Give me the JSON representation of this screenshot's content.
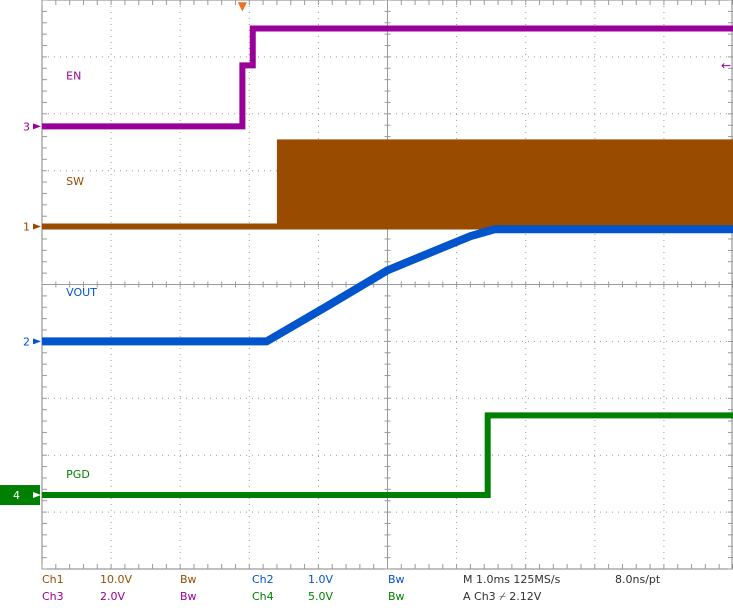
{
  "chart_data": {
    "type": "line",
    "title": "",
    "xlabel": "",
    "ylabel": "",
    "grid": true,
    "xlim": [
      0,
      10
    ],
    "ylim": [
      0,
      10
    ],
    "x_unit": "ms",
    "series": [
      {
        "name": "EN",
        "channel": "Ch3",
        "marker": "3",
        "color": "#990099",
        "thickness": "thin",
        "label_pos": [
          0.35,
          8.6
        ],
        "x": [
          0,
          2.9,
          2.9,
          3.05,
          3.05,
          10
        ],
        "y": [
          7.78,
          7.78,
          8.85,
          8.85,
          9.5,
          9.5
        ]
      },
      {
        "name": "SW",
        "channel": "Ch1",
        "marker": "1",
        "color": "#994c00",
        "thickness": "thin",
        "label_pos": [
          0.35,
          6.75
        ],
        "x": [
          0,
          3.4,
          3.4,
          10
        ],
        "y": [
          6.02,
          6.02,
          6.02,
          6.02
        ],
        "band": {
          "x_from": 3.4,
          "x_to": 10,
          "y_low": 6.02,
          "y_high": 7.55
        }
      },
      {
        "name": "VOUT",
        "channel": "Ch2",
        "marker": "2",
        "color": "#0055cc",
        "thickness": "thick",
        "label_pos": [
          0.35,
          4.8
        ],
        "x": [
          0,
          3.25,
          4.1,
          5.0,
          6.2,
          6.55,
          10
        ],
        "y": [
          4.0,
          4.0,
          4.6,
          5.25,
          5.85,
          5.97,
          5.97
        ]
      },
      {
        "name": "PGD",
        "channel": "Ch4",
        "marker": "4",
        "color": "#008000",
        "thickness": "thin",
        "label_pos": [
          0.35,
          1.6
        ],
        "x": [
          0,
          6.45,
          6.45,
          10
        ],
        "y": [
          1.3,
          1.3,
          2.7,
          2.7
        ]
      }
    ],
    "trigger_marker": "▼",
    "trigger_x": 2.9,
    "right_arrow": "←",
    "status": {
      "row1": {
        "ch1": {
          "name": "Ch1",
          "scale": "10.0V",
          "bw": "Bw"
        },
        "ch2": {
          "name": "Ch2",
          "scale": "1.0V",
          "bw": "Bw"
        },
        "timebase": "M 1.0ms 125MS/s",
        "resolution": "8.0ns/pt"
      },
      "row2": {
        "ch3": {
          "name": "Ch3",
          "scale": "2.0V",
          "bw": "Bw"
        },
        "ch4": {
          "name": "Ch4",
          "scale": "5.0V",
          "bw": "Bw"
        },
        "trigger": "A  Ch3  ⌿  2.12V"
      }
    }
  },
  "colors": {
    "grid": "#9a9a9a",
    "frame": "#808080",
    "trigger": "#f07020",
    "status_ch1": "#994c00",
    "status_ch2": "#0055cc",
    "status_ch3": "#990099",
    "status_ch4": "#008000",
    "status_text": "#303030"
  }
}
